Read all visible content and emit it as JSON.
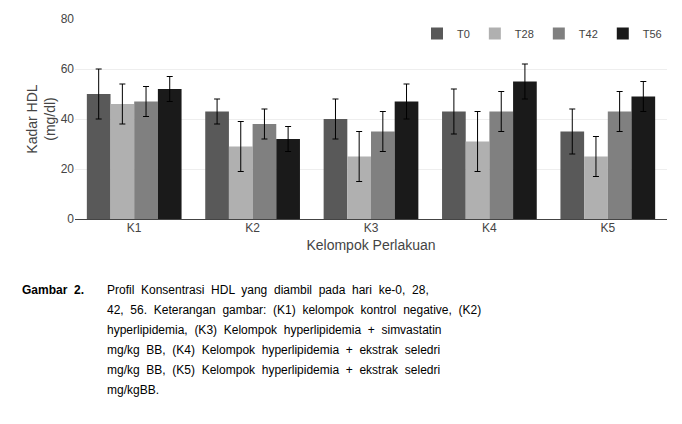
{
  "chart_data": {
    "type": "bar",
    "categories": [
      "K1",
      "K2",
      "K3",
      "K4",
      "K5"
    ],
    "series": [
      {
        "name": "T0",
        "color": "#595959",
        "values": [
          50,
          43,
          40,
          43,
          35
        ],
        "errors": [
          10,
          5,
          8,
          9,
          9
        ]
      },
      {
        "name": "T28",
        "color": "#b0b0b0",
        "values": [
          46,
          29,
          25,
          31,
          25
        ],
        "errors": [
          8,
          10,
          10,
          12,
          8
        ]
      },
      {
        "name": "T42",
        "color": "#808080",
        "values": [
          47,
          38,
          35,
          43,
          43
        ],
        "errors": [
          6,
          6,
          8,
          8,
          8
        ]
      },
      {
        "name": "T56",
        "color": "#1a1a1a",
        "values": [
          52,
          32,
          47,
          55,
          49
        ],
        "errors": [
          5,
          5,
          7,
          7,
          6
        ]
      }
    ],
    "xlabel": "Kelompok Perlakuan",
    "ylabel": "Kadar HDL\n(mg/dl)",
    "ylim": [
      0,
      80
    ],
    "yticks": [
      0,
      20,
      40,
      60,
      80
    ],
    "grid": true,
    "legend": "upper right",
    "annotations": [
      "Gambar  2.",
      "Profil  Konsentrasi  HDL  yang  diambil  pada  hari  ke-0,  28,",
      "42,  56.  Keterangan  gambar:  (K1)  kelompok  kontrol  negative,  (K2)",
      "hyperlipidemia,  (K3)  Kelompok  hyperlipidemia  +  simvastatin",
      "mg/kg  BB,  (K4)  Kelompok  hyperlipidemia  +  ekstrak  seledri",
      "mg/kg  BB,  (K5)  Kelompok  hyperlipidemia  +  ekstrak  seledri",
      "mg/kgBB."
    ]
  }
}
